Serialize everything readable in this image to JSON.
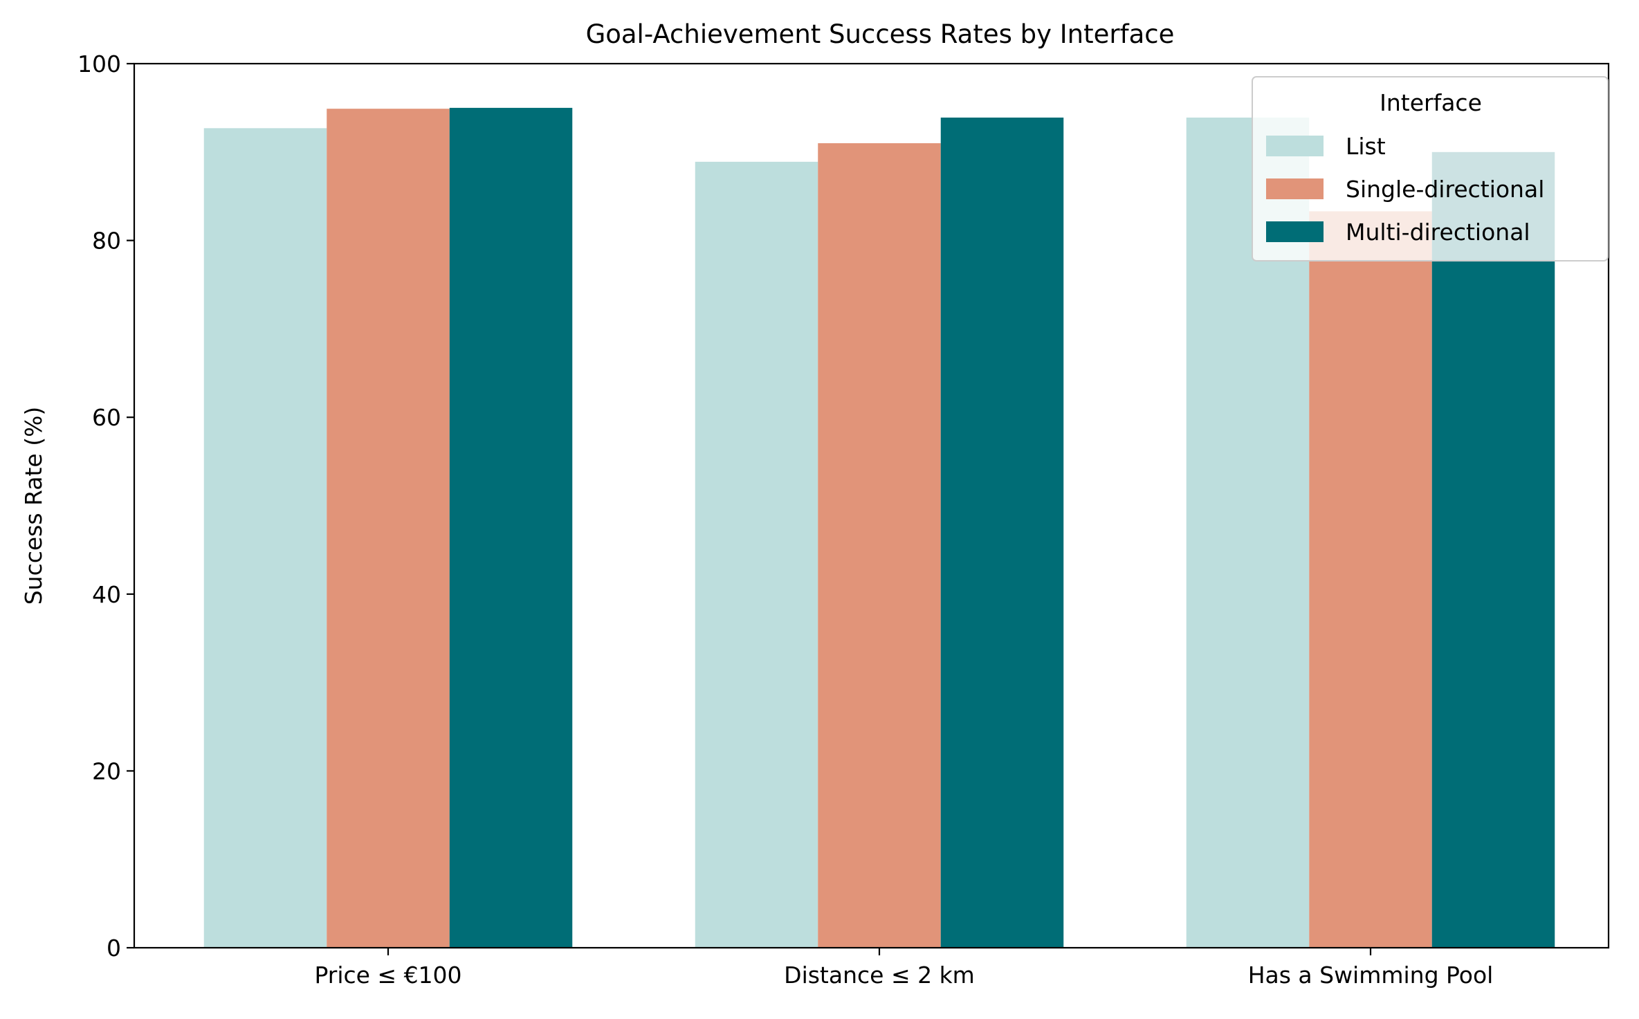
{
  "chart_data": {
    "type": "bar",
    "title": "Goal-Achievement Success Rates by Interface",
    "xlabel": "",
    "ylabel": "Success Rate (%)",
    "ylim": [
      0,
      100
    ],
    "yticks": [
      "0",
      "20",
      "40",
      "60",
      "80",
      "100"
    ],
    "categories": [
      "Price ≤ €100",
      "Distance ≤ 2 km",
      "Has a Swimming Pool"
    ],
    "series": [
      {
        "name": "List",
        "color": "#bddedd",
        "values": [
          92.7,
          88.9,
          93.9
        ]
      },
      {
        "name": "Single-directional",
        "color": "#e19479",
        "values": [
          94.9,
          91.0,
          83.3
        ]
      },
      {
        "name": "Multi-directional",
        "color": "#006d76",
        "values": [
          95.0,
          93.9,
          90.0
        ]
      }
    ],
    "legend": {
      "title": "Interface",
      "placement": "top-right"
    },
    "grid": false
  }
}
